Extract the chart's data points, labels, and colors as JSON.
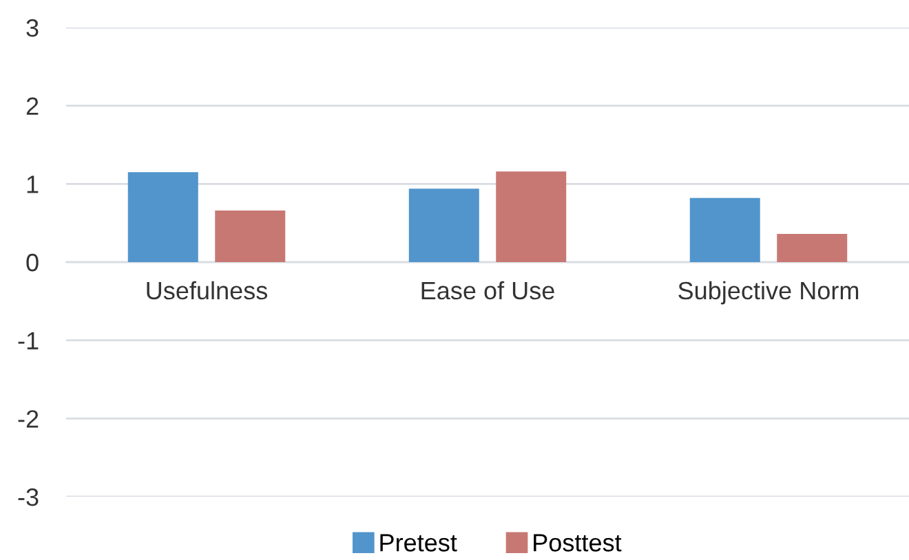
{
  "chart_data": {
    "type": "bar",
    "categories": [
      "Usefulness",
      "Ease of Use",
      "Subjective Norm"
    ],
    "series": [
      {
        "name": "Pretest",
        "color": "#5295cc",
        "values": [
          1.15,
          0.94,
          0.82
        ]
      },
      {
        "name": "Posttest",
        "color": "#c87873",
        "values": [
          0.66,
          1.16,
          0.36
        ]
      }
    ],
    "ylim": [
      -3,
      3
    ],
    "yticks": [
      -3,
      -2,
      -1,
      0,
      1,
      2,
      3
    ],
    "grid": "y",
    "legend": "bottom"
  }
}
